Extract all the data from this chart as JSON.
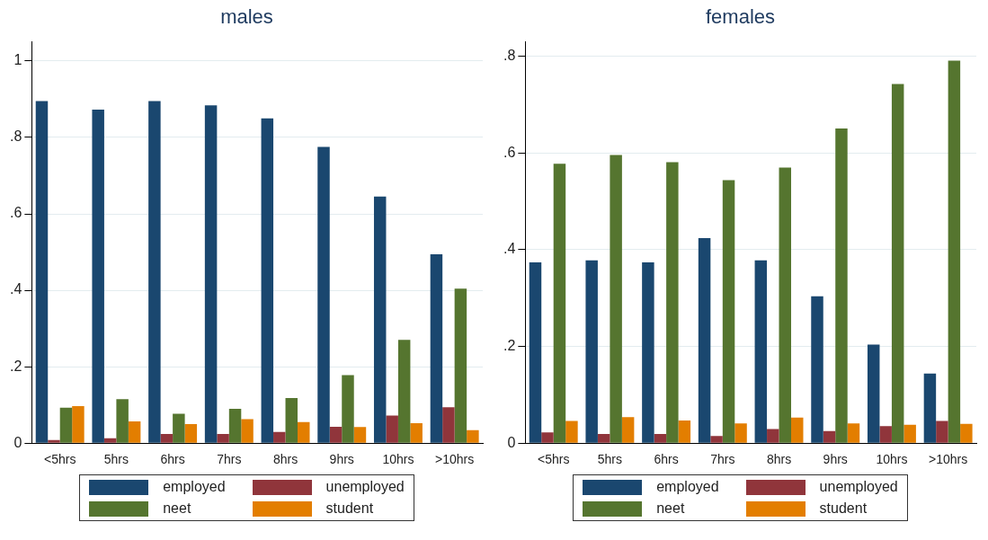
{
  "chart_data": [
    {
      "type": "bar",
      "title": "males",
      "categories": [
        "<5hrs",
        "5hrs",
        "6hrs",
        "7hrs",
        "8hrs",
        "9hrs",
        "10hrs",
        ">10hrs"
      ],
      "series": [
        {
          "name": "employed",
          "color": "#1a476f",
          "values": [
            0.895,
            0.873,
            0.895,
            0.884,
            0.85,
            0.775,
            0.645,
            0.494
          ]
        },
        {
          "name": "unemployed",
          "color": "#90353b",
          "values": [
            0.008,
            0.013,
            0.024,
            0.024,
            0.029,
            0.043,
            0.072,
            0.094
          ]
        },
        {
          "name": "neet",
          "color": "#55752f",
          "values": [
            0.093,
            0.115,
            0.077,
            0.09,
            0.118,
            0.178,
            0.27,
            0.404
          ]
        },
        {
          "name": "student",
          "color": "#e37e00",
          "values": [
            0.097,
            0.057,
            0.05,
            0.063,
            0.055,
            0.042,
            0.052,
            0.034
          ]
        }
      ],
      "ylim": [
        0,
        1.05
      ],
      "yticks": [
        {
          "value": 0,
          "label": "0"
        },
        {
          "value": 0.2,
          "label": ".2"
        },
        {
          "value": 0.4,
          "label": ".4"
        },
        {
          "value": 0.6,
          "label": ".6"
        },
        {
          "value": 0.8,
          "label": ".8"
        },
        {
          "value": 1,
          "label": "1"
        }
      ],
      "grid": "y",
      "legend": "bottom"
    },
    {
      "type": "bar",
      "title": "females",
      "categories": [
        "<5hrs",
        "5hrs",
        "6hrs",
        "7hrs",
        "8hrs",
        "9hrs",
        "10hrs",
        ">10hrs"
      ],
      "series": [
        {
          "name": "employed",
          "color": "#1a476f",
          "values": [
            0.374,
            0.378,
            0.374,
            0.424,
            0.378,
            0.304,
            0.204,
            0.144
          ]
        },
        {
          "name": "unemployed",
          "color": "#90353b",
          "values": [
            0.022,
            0.019,
            0.019,
            0.015,
            0.029,
            0.025,
            0.035,
            0.046
          ]
        },
        {
          "name": "neet",
          "color": "#55752f",
          "values": [
            0.578,
            0.596,
            0.581,
            0.544,
            0.57,
            0.651,
            0.743,
            0.791
          ]
        },
        {
          "name": "student",
          "color": "#e37e00",
          "values": [
            0.046,
            0.054,
            0.047,
            0.041,
            0.053,
            0.041,
            0.038,
            0.04
          ]
        }
      ],
      "ylim": [
        0,
        0.83
      ],
      "yticks": [
        {
          "value": 0,
          "label": "0"
        },
        {
          "value": 0.2,
          "label": ".2"
        },
        {
          "value": 0.4,
          "label": ".4"
        },
        {
          "value": 0.6,
          "label": ".6"
        },
        {
          "value": 0.8,
          "label": ".8"
        }
      ],
      "grid": "y",
      "legend": "bottom"
    }
  ]
}
